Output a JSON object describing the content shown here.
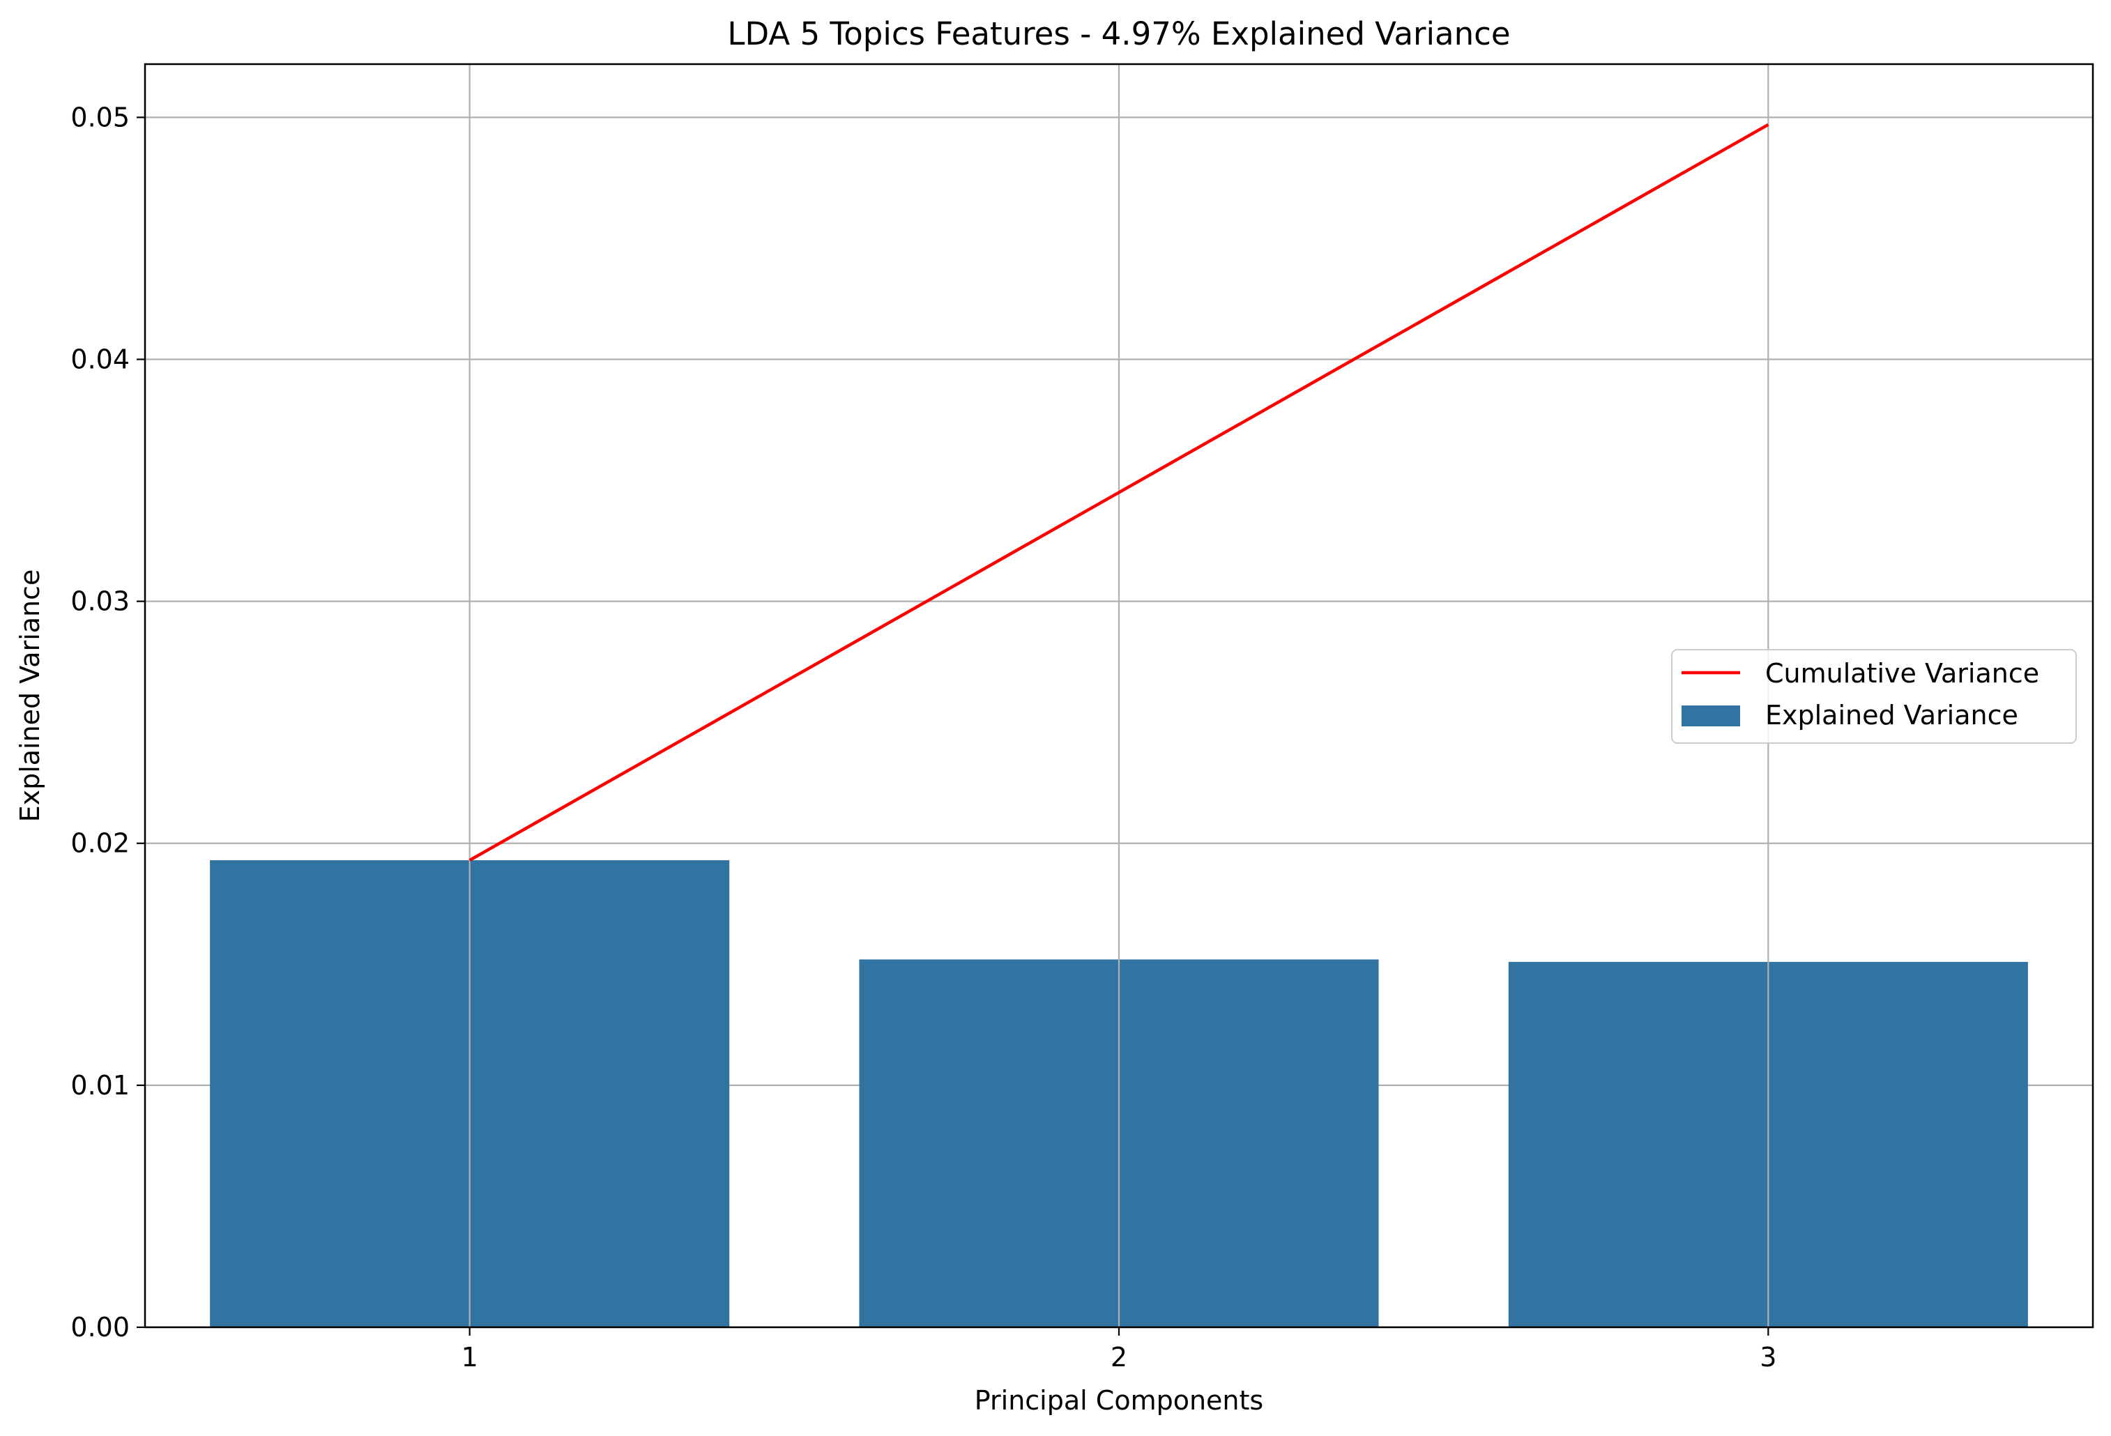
{
  "chart_data": {
    "type": "bar",
    "title": "LDA 5 Topics Features - 4.97% Explained Variance",
    "xlabel": "Principal Components",
    "ylabel": "Explained Variance",
    "categories": [
      "1",
      "2",
      "3"
    ],
    "series": [
      {
        "name": "Explained Variance",
        "type": "bar",
        "color": "#3274a1",
        "values": [
          0.0193,
          0.0152,
          0.0151
        ]
      },
      {
        "name": "Cumulative Variance",
        "type": "line",
        "color": "#ff0000",
        "values": [
          0.0193,
          0.0345,
          0.0497
        ]
      }
    ],
    "ylim": [
      0,
      0.0522
    ],
    "yticks": [
      "0.00",
      "0.01",
      "0.02",
      "0.03",
      "0.04",
      "0.05"
    ],
    "grid": true,
    "legend_position": "center-right"
  }
}
